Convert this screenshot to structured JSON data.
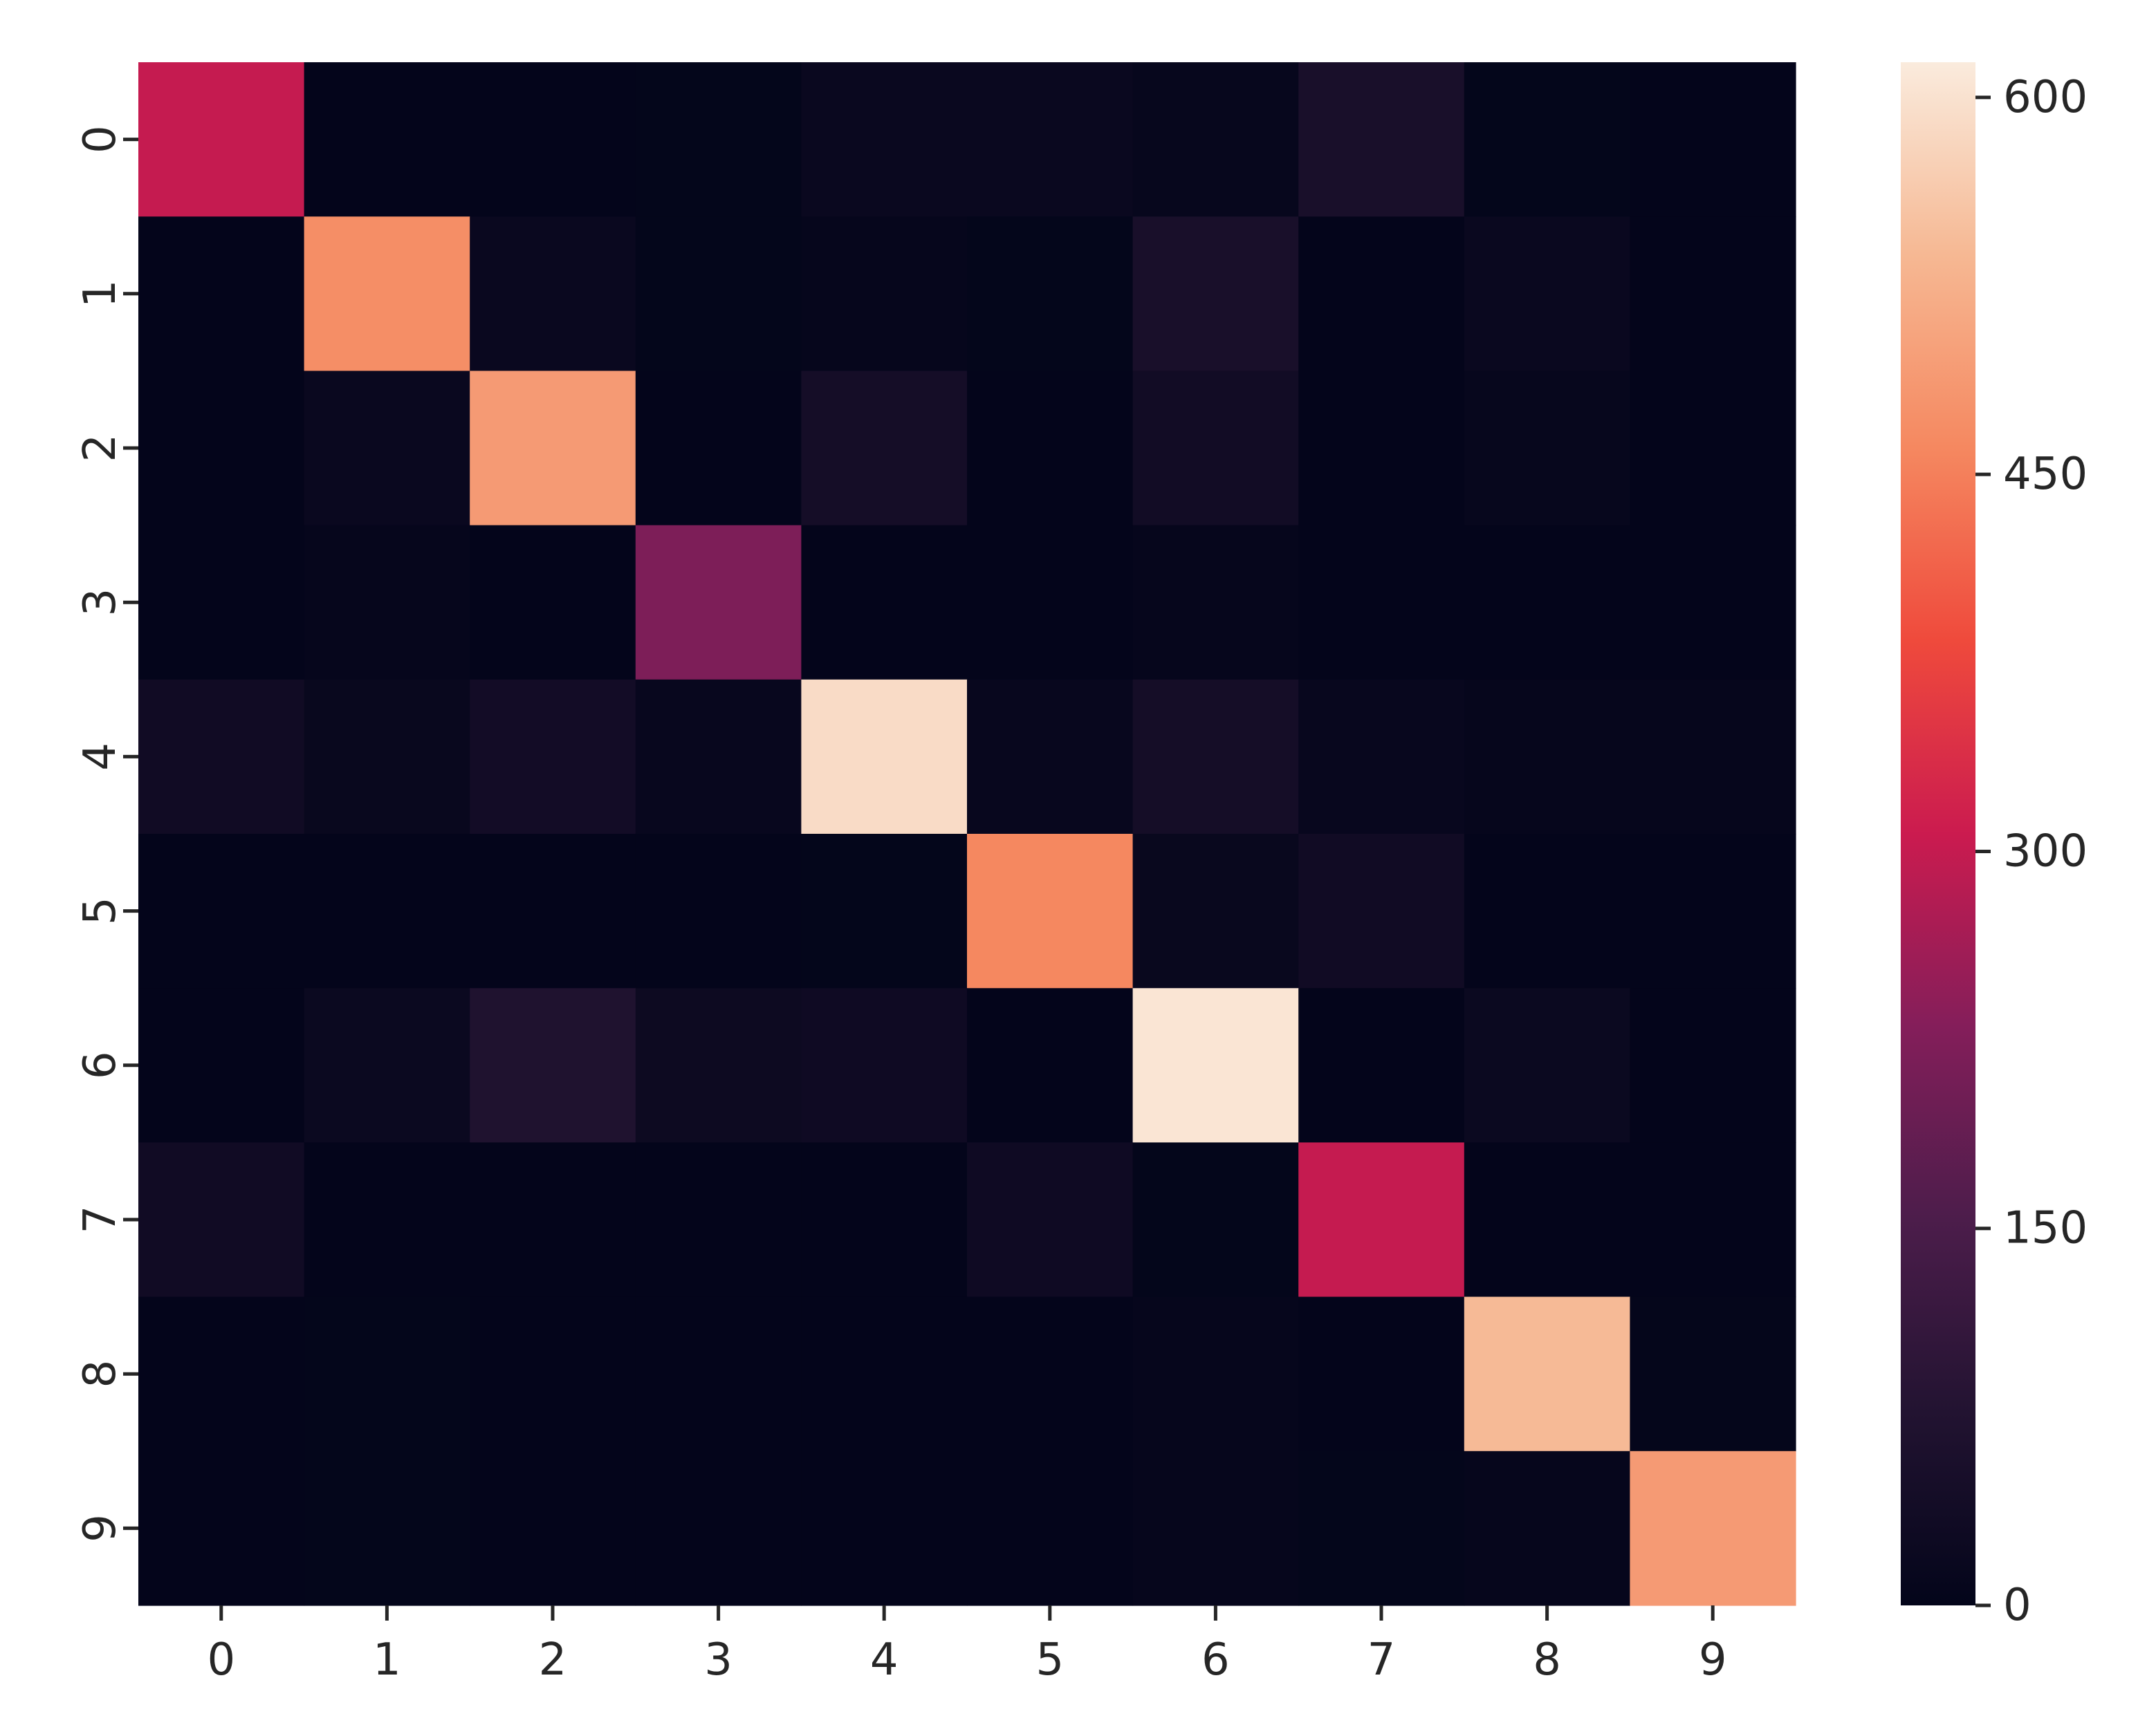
{
  "chart_data": {
    "type": "heatmap",
    "title": "",
    "xlabel": "",
    "ylabel": "",
    "x_tick_labels": [
      "0",
      "1",
      "2",
      "3",
      "4",
      "5",
      "6",
      "7",
      "8",
      "9"
    ],
    "y_tick_labels": [
      "0",
      "1",
      "2",
      "3",
      "4",
      "5",
      "6",
      "7",
      "8",
      "9"
    ],
    "values": [
      [
        300,
        2,
        2,
        3,
        18,
        18,
        10,
        55,
        3,
        2
      ],
      [
        2,
        470,
        18,
        3,
        8,
        3,
        55,
        2,
        18,
        2
      ],
      [
        2,
        18,
        490,
        2,
        45,
        2,
        38,
        2,
        10,
        2
      ],
      [
        2,
        8,
        2,
        220,
        2,
        2,
        8,
        2,
        2,
        2
      ],
      [
        35,
        15,
        40,
        12,
        590,
        12,
        45,
        12,
        8,
        8
      ],
      [
        2,
        2,
        2,
        2,
        3,
        460,
        15,
        35,
        2,
        2
      ],
      [
        2,
        20,
        70,
        25,
        30,
        2,
        605,
        2,
        20,
        2
      ],
      [
        35,
        2,
        2,
        2,
        2,
        30,
        3,
        300,
        2,
        2
      ],
      [
        2,
        3,
        2,
        2,
        2,
        2,
        8,
        2,
        540,
        5
      ],
      [
        2,
        3,
        2,
        2,
        2,
        2,
        8,
        3,
        8,
        490
      ]
    ],
    "colorbar": {
      "min": 0,
      "max": 614,
      "ticks": [
        "0",
        "150",
        "300",
        "450",
        "600"
      ]
    },
    "colormap": "rocket",
    "grid": false,
    "legend": "colorbar-right"
  }
}
